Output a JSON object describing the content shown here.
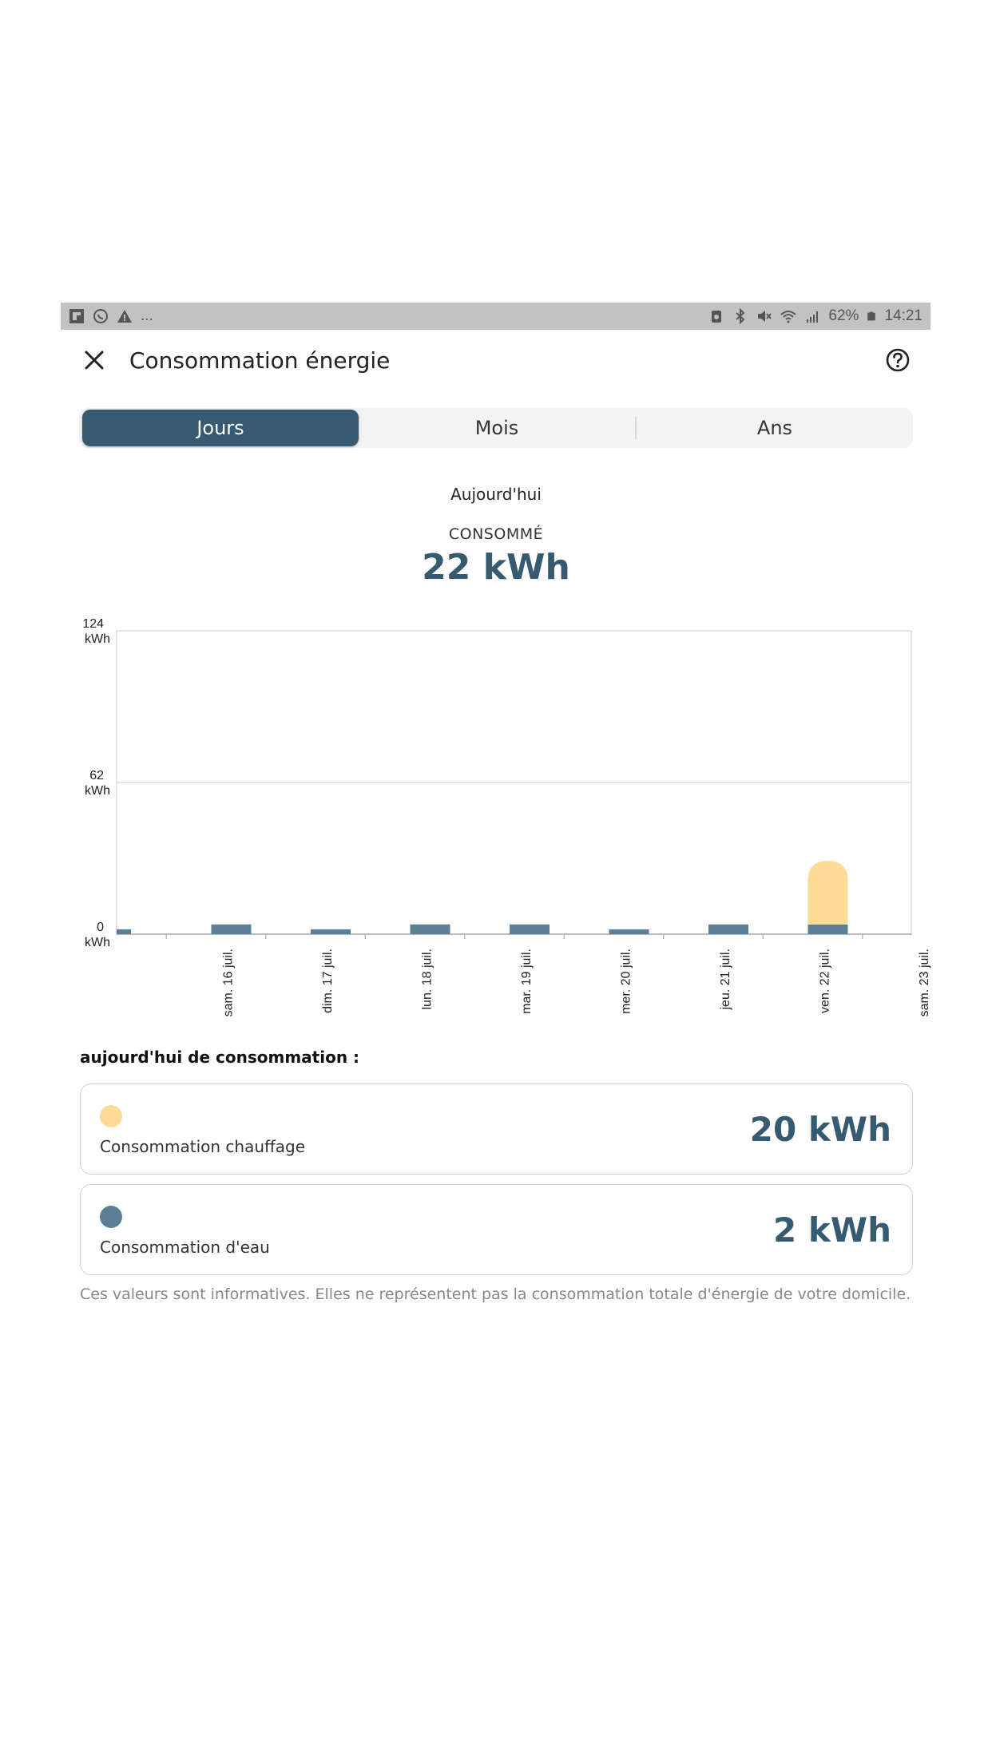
{
  "status_bar": {
    "left_icons": [
      "flipboard-icon",
      "whatsapp-icon",
      "warning-icon"
    ],
    "left_more": "...",
    "battery_percent": "62%",
    "time": "14:21"
  },
  "header": {
    "title": "Consommation énergie"
  },
  "tabs": [
    {
      "label": "Jours",
      "active": true
    },
    {
      "label": "Mois",
      "active": false
    },
    {
      "label": "Ans",
      "active": false
    }
  ],
  "summary": {
    "period": "Aujourd'hui",
    "label": "CONSOMMÉ",
    "value": "22 kWh"
  },
  "colors": {
    "primary": "#365a70",
    "water": "#5b7f96",
    "heating": "#fbdb96",
    "grid": "#dcdcdc"
  },
  "chart_data": {
    "type": "bar",
    "stacked": true,
    "ylim": [
      0,
      124
    ],
    "y_ticks": [
      {
        "value": 124,
        "label": "124",
        "unit": "kWh"
      },
      {
        "value": 62,
        "label": "62",
        "unit": "kWh"
      },
      {
        "value": 0,
        "label": "0",
        "unit": "kWh"
      }
    ],
    "categories": [
      "",
      "sam. 16 juil.",
      "dim. 17 juil.",
      "lun. 18 juil.",
      "mar. 19 juil.",
      "mer. 20 juil.",
      "jeu. 21 juil.",
      "ven. 22 juil.",
      "sam. 23 juil."
    ],
    "series": [
      {
        "key": "water",
        "values": [
          2,
          4,
          2,
          4,
          4,
          2,
          4,
          4,
          0
        ]
      },
      {
        "key": "heating",
        "values": [
          0,
          0,
          0,
          0,
          0,
          0,
          0,
          26,
          0
        ]
      }
    ]
  },
  "breakdown": {
    "title": "aujourd'hui de consommation :",
    "items": [
      {
        "label": "Consommation chauffage",
        "value": "20 kWh",
        "color": "#fbdb96"
      },
      {
        "label": "Consommation d'eau",
        "value": "2 kWh",
        "color": "#5b7f96"
      }
    ]
  },
  "disclaimer": "Ces valeurs sont informatives. Elles ne représentent pas la consommation totale d'énergie de votre domicile."
}
